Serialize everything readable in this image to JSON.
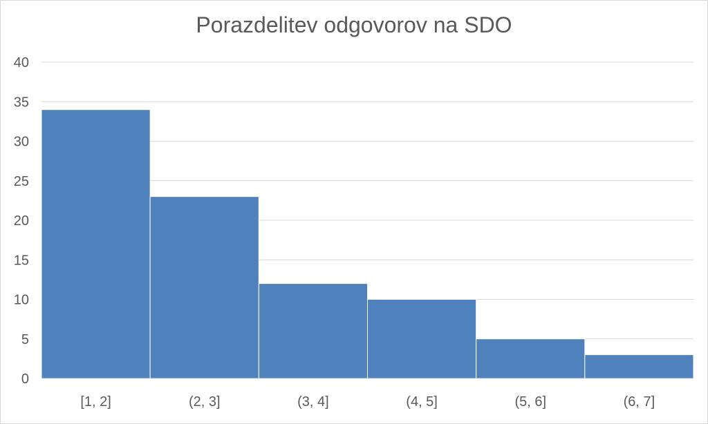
{
  "chart_data": {
    "type": "bar",
    "title": "Porazdelitev odgovorov na SDO",
    "categories": [
      "[1, 2]",
      "(2, 3]",
      "(3, 4]",
      "(4, 5]",
      "(5, 6]",
      "(6, 7]"
    ],
    "values": [
      34,
      23,
      12,
      10,
      5,
      3
    ],
    "ylim": [
      0,
      40
    ],
    "yticks": [
      0,
      5,
      10,
      15,
      20,
      25,
      30,
      35,
      40
    ],
    "xlabel": "",
    "ylabel": "",
    "grid": true,
    "legend": "none",
    "colors": {
      "bar": "#4f81bd",
      "bar_border": "#ffffff",
      "grid": "#d9d9d9",
      "text": "#595959",
      "frame": "#d9d9d9"
    }
  }
}
